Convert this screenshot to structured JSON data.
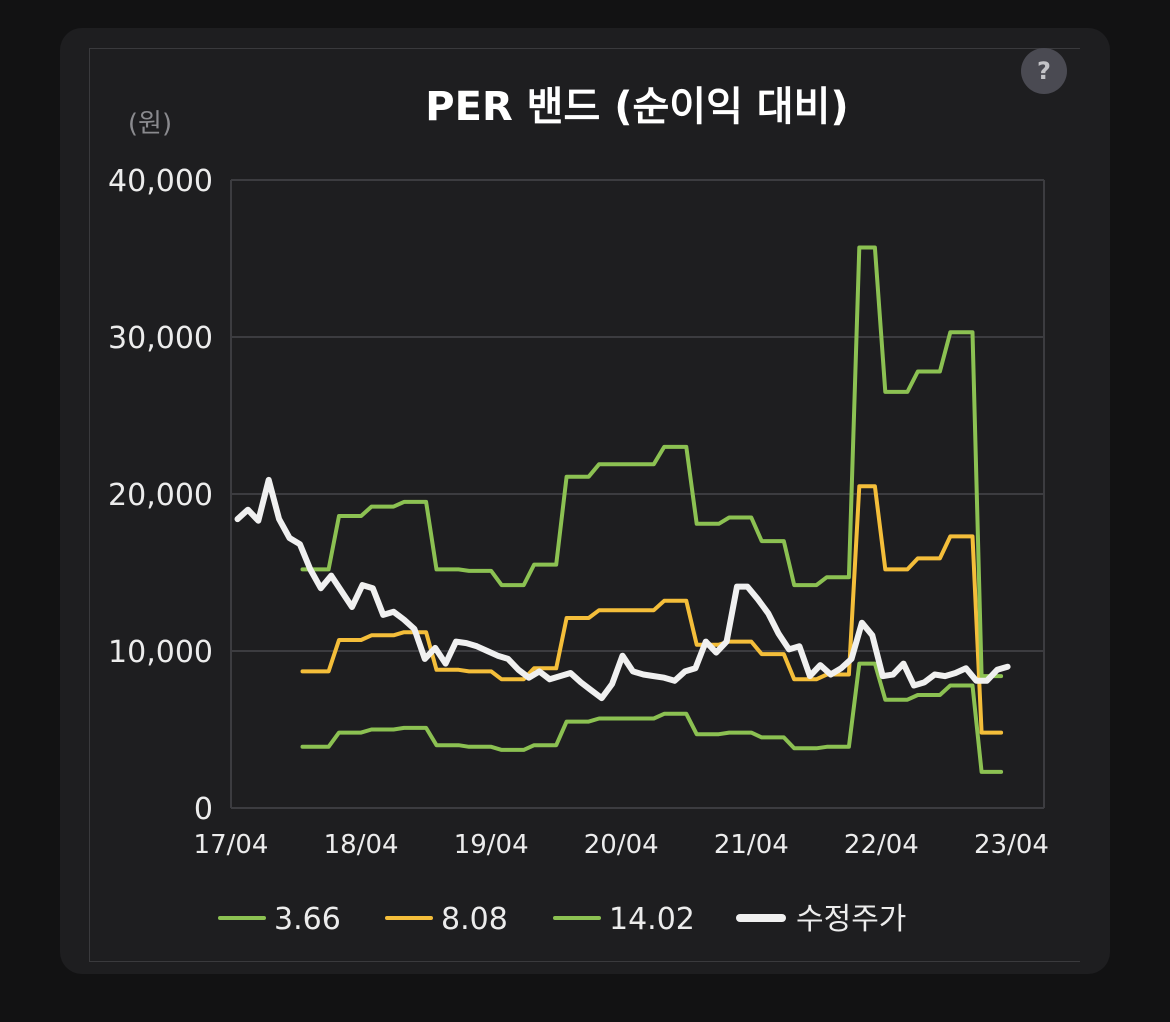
{
  "help": {
    "icon": "?"
  },
  "chart_data": {
    "type": "line",
    "title": "PER 밴드 (순이익 대비)",
    "unit_label": "(원)",
    "ylim": [
      0,
      40000
    ],
    "y_ticks": [
      "0",
      "10,000",
      "20,000",
      "30,000",
      "40,000"
    ],
    "y_tick_values": [
      0,
      10000,
      20000,
      30000,
      40000
    ],
    "x_ticks": [
      "17/04",
      "18/04",
      "19/04",
      "20/04",
      "21/04",
      "22/04",
      "23/04"
    ],
    "x_tick_values": [
      2017.25,
      2018.25,
      2019.25,
      2020.25,
      2021.25,
      2022.25,
      2023.25
    ],
    "xlim": [
      2017.25,
      2023.5
    ],
    "grid": true,
    "legend_position": "bottom",
    "series": [
      {
        "name": "3.66",
        "color": "#8cc152",
        "width": 4,
        "points": [
          [
            17.8,
            3900
          ],
          [
            18.0,
            3900
          ],
          [
            18.08,
            4800
          ],
          [
            18.25,
            4800
          ],
          [
            18.33,
            5000
          ],
          [
            18.5,
            5000
          ],
          [
            18.58,
            5100
          ],
          [
            18.75,
            5100
          ],
          [
            18.83,
            4000
          ],
          [
            19.0,
            4000
          ],
          [
            19.08,
            3900
          ],
          [
            19.25,
            3900
          ],
          [
            19.33,
            3700
          ],
          [
            19.5,
            3700
          ],
          [
            19.58,
            4000
          ],
          [
            19.75,
            4000
          ],
          [
            19.83,
            5500
          ],
          [
            20.0,
            5500
          ],
          [
            20.08,
            5700
          ],
          [
            20.5,
            5700
          ],
          [
            20.58,
            6000
          ],
          [
            20.75,
            6000
          ],
          [
            20.83,
            4700
          ],
          [
            21.0,
            4700
          ],
          [
            21.08,
            4800
          ],
          [
            21.25,
            4800
          ],
          [
            21.33,
            4500
          ],
          [
            21.5,
            4500
          ],
          [
            21.58,
            3800
          ],
          [
            21.75,
            3800
          ],
          [
            21.83,
            3900
          ],
          [
            22.0,
            3900
          ],
          [
            22.08,
            9200
          ],
          [
            22.2,
            9200
          ],
          [
            22.28,
            6900
          ],
          [
            22.45,
            6900
          ],
          [
            22.53,
            7200
          ],
          [
            22.7,
            7200
          ],
          [
            22.78,
            7800
          ],
          [
            22.95,
            7800
          ],
          [
            23.02,
            2300
          ],
          [
            23.17,
            2300
          ]
        ]
      },
      {
        "name": "8.08",
        "color": "#f4be3a",
        "width": 4,
        "points": [
          [
            17.8,
            8700
          ],
          [
            18.0,
            8700
          ],
          [
            18.08,
            10700
          ],
          [
            18.25,
            10700
          ],
          [
            18.33,
            11000
          ],
          [
            18.5,
            11000
          ],
          [
            18.58,
            11200
          ],
          [
            18.75,
            11200
          ],
          [
            18.83,
            8800
          ],
          [
            19.0,
            8800
          ],
          [
            19.08,
            8700
          ],
          [
            19.25,
            8700
          ],
          [
            19.33,
            8200
          ],
          [
            19.5,
            8200
          ],
          [
            19.58,
            8900
          ],
          [
            19.75,
            8900
          ],
          [
            19.83,
            12100
          ],
          [
            20.0,
            12100
          ],
          [
            20.08,
            12600
          ],
          [
            20.5,
            12600
          ],
          [
            20.58,
            13200
          ],
          [
            20.75,
            13200
          ],
          [
            20.83,
            10400
          ],
          [
            21.0,
            10400
          ],
          [
            21.08,
            10600
          ],
          [
            21.25,
            10600
          ],
          [
            21.33,
            9800
          ],
          [
            21.5,
            9800
          ],
          [
            21.58,
            8200
          ],
          [
            21.75,
            8200
          ],
          [
            21.83,
            8500
          ],
          [
            22.0,
            8500
          ],
          [
            22.08,
            20500
          ],
          [
            22.2,
            20500
          ],
          [
            22.28,
            15200
          ],
          [
            22.45,
            15200
          ],
          [
            22.53,
            15900
          ],
          [
            22.7,
            15900
          ],
          [
            22.78,
            17300
          ],
          [
            22.95,
            17300
          ],
          [
            23.02,
            4800
          ],
          [
            23.17,
            4800
          ]
        ]
      },
      {
        "name": "14.02",
        "color": "#8cc152",
        "width": 4,
        "points": [
          [
            17.8,
            15200
          ],
          [
            18.0,
            15200
          ],
          [
            18.08,
            18600
          ],
          [
            18.25,
            18600
          ],
          [
            18.33,
            19200
          ],
          [
            18.5,
            19200
          ],
          [
            18.58,
            19500
          ],
          [
            18.75,
            19500
          ],
          [
            18.83,
            15200
          ],
          [
            19.0,
            15200
          ],
          [
            19.08,
            15100
          ],
          [
            19.25,
            15100
          ],
          [
            19.33,
            14200
          ],
          [
            19.5,
            14200
          ],
          [
            19.58,
            15500
          ],
          [
            19.75,
            15500
          ],
          [
            19.83,
            21100
          ],
          [
            20.0,
            21100
          ],
          [
            20.08,
            21900
          ],
          [
            20.5,
            21900
          ],
          [
            20.58,
            23000
          ],
          [
            20.75,
            23000
          ],
          [
            20.83,
            18100
          ],
          [
            21.0,
            18100
          ],
          [
            21.08,
            18500
          ],
          [
            21.25,
            18500
          ],
          [
            21.33,
            17000
          ],
          [
            21.5,
            17000
          ],
          [
            21.58,
            14200
          ],
          [
            21.75,
            14200
          ],
          [
            21.83,
            14700
          ],
          [
            22.0,
            14700
          ],
          [
            22.08,
            35700
          ],
          [
            22.2,
            35700
          ],
          [
            22.28,
            26500
          ],
          [
            22.45,
            26500
          ],
          [
            22.53,
            27800
          ],
          [
            22.7,
            27800
          ],
          [
            22.78,
            30300
          ],
          [
            22.95,
            30300
          ],
          [
            23.02,
            8400
          ],
          [
            23.17,
            8400
          ]
        ]
      },
      {
        "name": "수정주가",
        "color": "#f0f0f0",
        "width": 6,
        "points": [
          [
            17.3,
            18400
          ],
          [
            17.38,
            19000
          ],
          [
            17.46,
            18300
          ],
          [
            17.54,
            20900
          ],
          [
            17.62,
            18400
          ],
          [
            17.7,
            17200
          ],
          [
            17.78,
            16800
          ],
          [
            17.86,
            15200
          ],
          [
            17.94,
            14000
          ],
          [
            18.02,
            14800
          ],
          [
            18.1,
            13800
          ],
          [
            18.18,
            12800
          ],
          [
            18.26,
            14200
          ],
          [
            18.34,
            14000
          ],
          [
            18.42,
            12300
          ],
          [
            18.5,
            12500
          ],
          [
            18.58,
            12000
          ],
          [
            18.66,
            11400
          ],
          [
            18.74,
            9500
          ],
          [
            18.82,
            10200
          ],
          [
            18.9,
            9200
          ],
          [
            18.98,
            10600
          ],
          [
            19.06,
            10500
          ],
          [
            19.14,
            10300
          ],
          [
            19.22,
            10000
          ],
          [
            19.3,
            9700
          ],
          [
            19.38,
            9500
          ],
          [
            19.46,
            8800
          ],
          [
            19.54,
            8300
          ],
          [
            19.62,
            8700
          ],
          [
            19.7,
            8200
          ],
          [
            19.78,
            8400
          ],
          [
            19.86,
            8600
          ],
          [
            19.94,
            8000
          ],
          [
            20.02,
            7500
          ],
          [
            20.1,
            7000
          ],
          [
            20.18,
            7900
          ],
          [
            20.26,
            9700
          ],
          [
            20.34,
            8700
          ],
          [
            20.42,
            8500
          ],
          [
            20.5,
            8400
          ],
          [
            20.58,
            8300
          ],
          [
            20.66,
            8100
          ],
          [
            20.74,
            8700
          ],
          [
            20.82,
            8900
          ],
          [
            20.9,
            10600
          ],
          [
            20.98,
            9900
          ],
          [
            21.06,
            10600
          ],
          [
            21.14,
            14100
          ],
          [
            21.22,
            14100
          ],
          [
            21.3,
            13300
          ],
          [
            21.38,
            12400
          ],
          [
            21.46,
            11100
          ],
          [
            21.54,
            10100
          ],
          [
            21.62,
            10300
          ],
          [
            21.7,
            8400
          ],
          [
            21.78,
            9100
          ],
          [
            21.86,
            8500
          ],
          [
            21.94,
            8900
          ],
          [
            22.02,
            9500
          ],
          [
            22.1,
            11800
          ],
          [
            22.18,
            11000
          ],
          [
            22.26,
            8400
          ],
          [
            22.34,
            8500
          ],
          [
            22.42,
            9200
          ],
          [
            22.5,
            7800
          ],
          [
            22.58,
            8000
          ],
          [
            22.66,
            8500
          ],
          [
            22.74,
            8400
          ],
          [
            22.82,
            8600
          ],
          [
            22.9,
            8900
          ],
          [
            22.98,
            8100
          ],
          [
            23.06,
            8100
          ],
          [
            23.14,
            8800
          ],
          [
            23.22,
            9000
          ]
        ]
      }
    ]
  }
}
